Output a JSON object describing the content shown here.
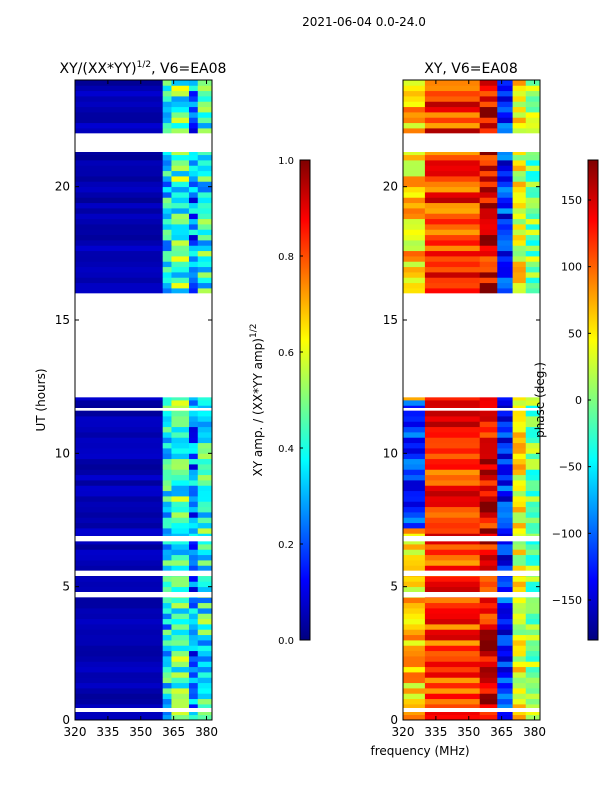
{
  "suptitle": "2021-06-04 0.0-24.0",
  "shared_xlabel": "frequency (MHz)",
  "colors": {
    "white": "#ffffff",
    "frame": "#000000",
    "jet": [
      "#00007f",
      "#0000ff",
      "#007fff",
      "#00ffff",
      "#7fff7f",
      "#ffff00",
      "#ff7f00",
      "#ff0000",
      "#7f0000"
    ]
  },
  "chart_data": [
    {
      "type": "heatmap",
      "title_main": "XY/(XX*YY)",
      "title_sup": "1/2",
      "title_rest": ", V6=EA08",
      "xlabel": "",
      "ylabel": "UT (hours)",
      "xlim": [
        320,
        382.5
      ],
      "ylim": [
        0,
        24
      ],
      "xticks": [
        320,
        335,
        350,
        365,
        380
      ],
      "xtick_labels": [
        "320",
        "335",
        "350",
        "365",
        "380"
      ],
      "yticks": [
        0,
        5,
        10,
        15,
        20
      ],
      "ytick_labels": [
        "0",
        "5",
        "10",
        "15",
        "20"
      ],
      "colorbar": {
        "label_main": "XY amp. / (XX*YY amp)",
        "label_sup": "1/2",
        "range": [
          0.0,
          1.0
        ],
        "ticks": [
          0.0,
          0.2,
          0.4,
          0.6,
          0.8,
          1.0
        ],
        "tick_labels": [
          "0.0",
          "0.2",
          "0.4",
          "0.6",
          "0.8",
          "1.0"
        ]
      },
      "data_gaps_hours": [
        [
          21.3,
          22.0
        ],
        [
          12.1,
          16.0
        ],
        [
          11.6,
          11.7
        ],
        [
          6.7,
          6.9
        ],
        [
          5.4,
          5.6
        ],
        [
          4.6,
          4.8
        ],
        [
          0.3,
          0.45
        ]
      ],
      "approx_value_by_frequency_band": [
        {
          "band_mhz": [
            320,
            360
          ],
          "value": 0.05
        },
        {
          "band_mhz": [
            360,
            364
          ],
          "value": 0.35
        },
        {
          "band_mhz": [
            364,
            372
          ],
          "value": 0.45
        },
        {
          "band_mhz": [
            372,
            376
          ],
          "value": 0.25
        },
        {
          "band_mhz": [
            376,
            382.5
          ],
          "value": 0.4
        }
      ]
    },
    {
      "type": "heatmap",
      "title_main": "XY, V6=EA08",
      "xlabel": "",
      "ylabel": "",
      "xlim": [
        320,
        382.5
      ],
      "ylim": [
        0,
        24
      ],
      "xticks": [
        320,
        335,
        350,
        365,
        380
      ],
      "xtick_labels": [
        "320",
        "335",
        "350",
        "365",
        "380"
      ],
      "yticks": [
        0,
        5,
        10,
        15,
        20
      ],
      "ytick_labels": [
        "0",
        "5",
        "10",
        "15",
        "20"
      ],
      "colorbar": {
        "label_main": "phase (deg.)",
        "range": [
          -180,
          180
        ],
        "ticks": [
          -150,
          -100,
          -50,
          0,
          50,
          100,
          150
        ],
        "tick_labels": [
          "−150",
          "−100",
          "−50",
          "0",
          "50",
          "100",
          "150"
        ]
      },
      "data_gaps_hours": [
        [
          21.3,
          22.0
        ],
        [
          12.1,
          16.0
        ],
        [
          11.6,
          11.7
        ],
        [
          6.7,
          6.9
        ],
        [
          5.4,
          5.6
        ],
        [
          4.6,
          4.8
        ],
        [
          0.3,
          0.45
        ]
      ],
      "approx_phase_deg_by_frequency_band": [
        {
          "band_mhz": [
            320,
            330
          ],
          "value": 60
        },
        {
          "band_mhz": [
            330,
            355
          ],
          "value": 120
        },
        {
          "band_mhz": [
            355,
            363
          ],
          "value": 140
        },
        {
          "band_mhz": [
            363,
            370
          ],
          "value": -120
        },
        {
          "band_mhz": [
            370,
            376
          ],
          "value": 40
        },
        {
          "band_mhz": [
            376,
            382.5
          ],
          "value": 0
        }
      ]
    }
  ]
}
